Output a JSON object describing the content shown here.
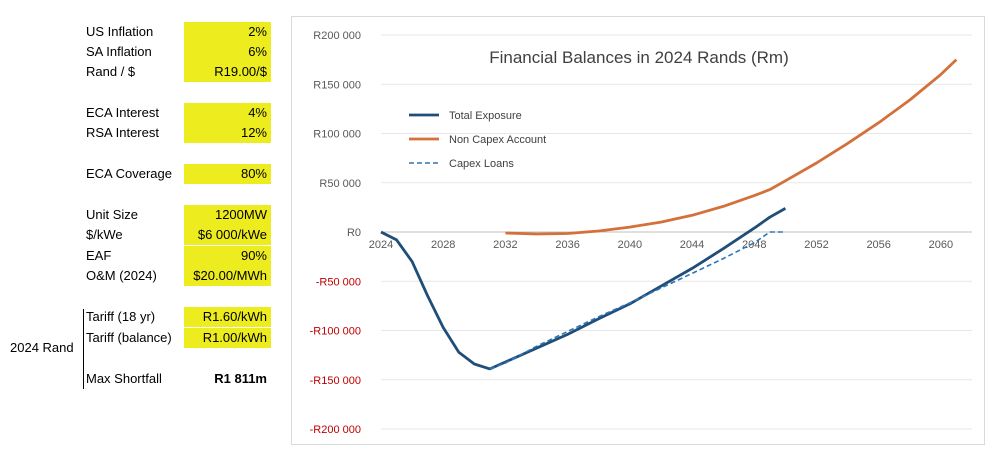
{
  "parameters": {
    "rows": [
      {
        "label": "US Inflation",
        "value": "2%"
      },
      {
        "label": "SA Inflation",
        "value": "6%"
      },
      {
        "label": "Rand / $",
        "value": "R19.00/$"
      },
      {
        "label": "ECA Interest",
        "value": "4%"
      },
      {
        "label": "RSA Interest",
        "value": "12%"
      },
      {
        "label": "ECA Coverage",
        "value": "80%"
      },
      {
        "label": "Unit Size",
        "value": "1200MW"
      },
      {
        "label": "$/kWe",
        "value": "$6 000/kWe"
      },
      {
        "label": "EAF",
        "value": "90%"
      },
      {
        "label": "O&M (2024)",
        "value": "$20.00/MWh"
      },
      {
        "label": "Tariff (18 yr)",
        "value": "R1.60/kWh"
      },
      {
        "label": "Tariff (balance)",
        "value": "R1.00/kWh"
      },
      {
        "label": "Max Shortfall",
        "value": "R1 811m"
      }
    ],
    "group_label": "2024 Rand"
  },
  "colors": {
    "total_exposure": "#1f4e79",
    "non_capex": "#d4703a",
    "capex_loans": "#2e75b6",
    "highlight": "#ecec1e"
  },
  "chart_data": {
    "type": "line",
    "title": "Financial Balances in 2024 Rands (Rm)",
    "xlabel": "",
    "ylabel": "",
    "xlim": [
      2024,
      2062
    ],
    "ylim": [
      -200000,
      200000
    ],
    "x_ticks": [
      "2024",
      "2028",
      "2032",
      "2036",
      "2040",
      "2044",
      "2048",
      "2052",
      "2056",
      "2060"
    ],
    "y_ticks": [
      {
        "value": 200000,
        "label": "R200 000"
      },
      {
        "value": 150000,
        "label": "R150 000"
      },
      {
        "value": 100000,
        "label": "R100 000"
      },
      {
        "value": 50000,
        "label": "R50 000"
      },
      {
        "value": 0,
        "label": "R0"
      },
      {
        "value": -50000,
        "label": "-R50 000"
      },
      {
        "value": -100000,
        "label": "-R100 000"
      },
      {
        "value": -150000,
        "label": "-R150 000"
      },
      {
        "value": -200000,
        "label": "-R200 000"
      }
    ],
    "legend_position": "top-left",
    "series": [
      {
        "name": "Total Exposure",
        "style": "solid",
        "color": "#1f4e79",
        "x": [
          2024,
          2025,
          2026,
          2027,
          2028,
          2029,
          2030,
          2031,
          2032,
          2034,
          2036,
          2038,
          2040,
          2042,
          2044,
          2046,
          2048,
          2049,
          2050
        ],
        "y": [
          0,
          -8000,
          -30000,
          -65000,
          -97000,
          -122000,
          -134000,
          -139000,
          -132000,
          -118000,
          -104000,
          -88000,
          -73000,
          -55000,
          -37000,
          -17000,
          4000,
          15000,
          24000
        ]
      },
      {
        "name": "Non Capex Account",
        "style": "solid",
        "color": "#d4703a",
        "x": [
          2032,
          2034,
          2036,
          2038,
          2040,
          2042,
          2044,
          2046,
          2048,
          2049,
          2050,
          2052,
          2054,
          2056,
          2058,
          2060,
          2061
        ],
        "y": [
          -1000,
          -2000,
          -1500,
          1000,
          5000,
          10000,
          17000,
          26000,
          37000,
          43000,
          52000,
          70000,
          90000,
          111000,
          134000,
          160000,
          175000
        ]
      },
      {
        "name": "Capex Loans",
        "style": "dashed",
        "color": "#2e75b6",
        "x": [
          2031,
          2032,
          2034,
          2036,
          2038,
          2040,
          2042,
          2044,
          2046,
          2048,
          2049,
          2050
        ],
        "y": [
          -139000,
          -133000,
          -116000,
          -101000,
          -86000,
          -72000,
          -57000,
          -42000,
          -27000,
          -11000,
          0,
          0
        ]
      }
    ]
  }
}
